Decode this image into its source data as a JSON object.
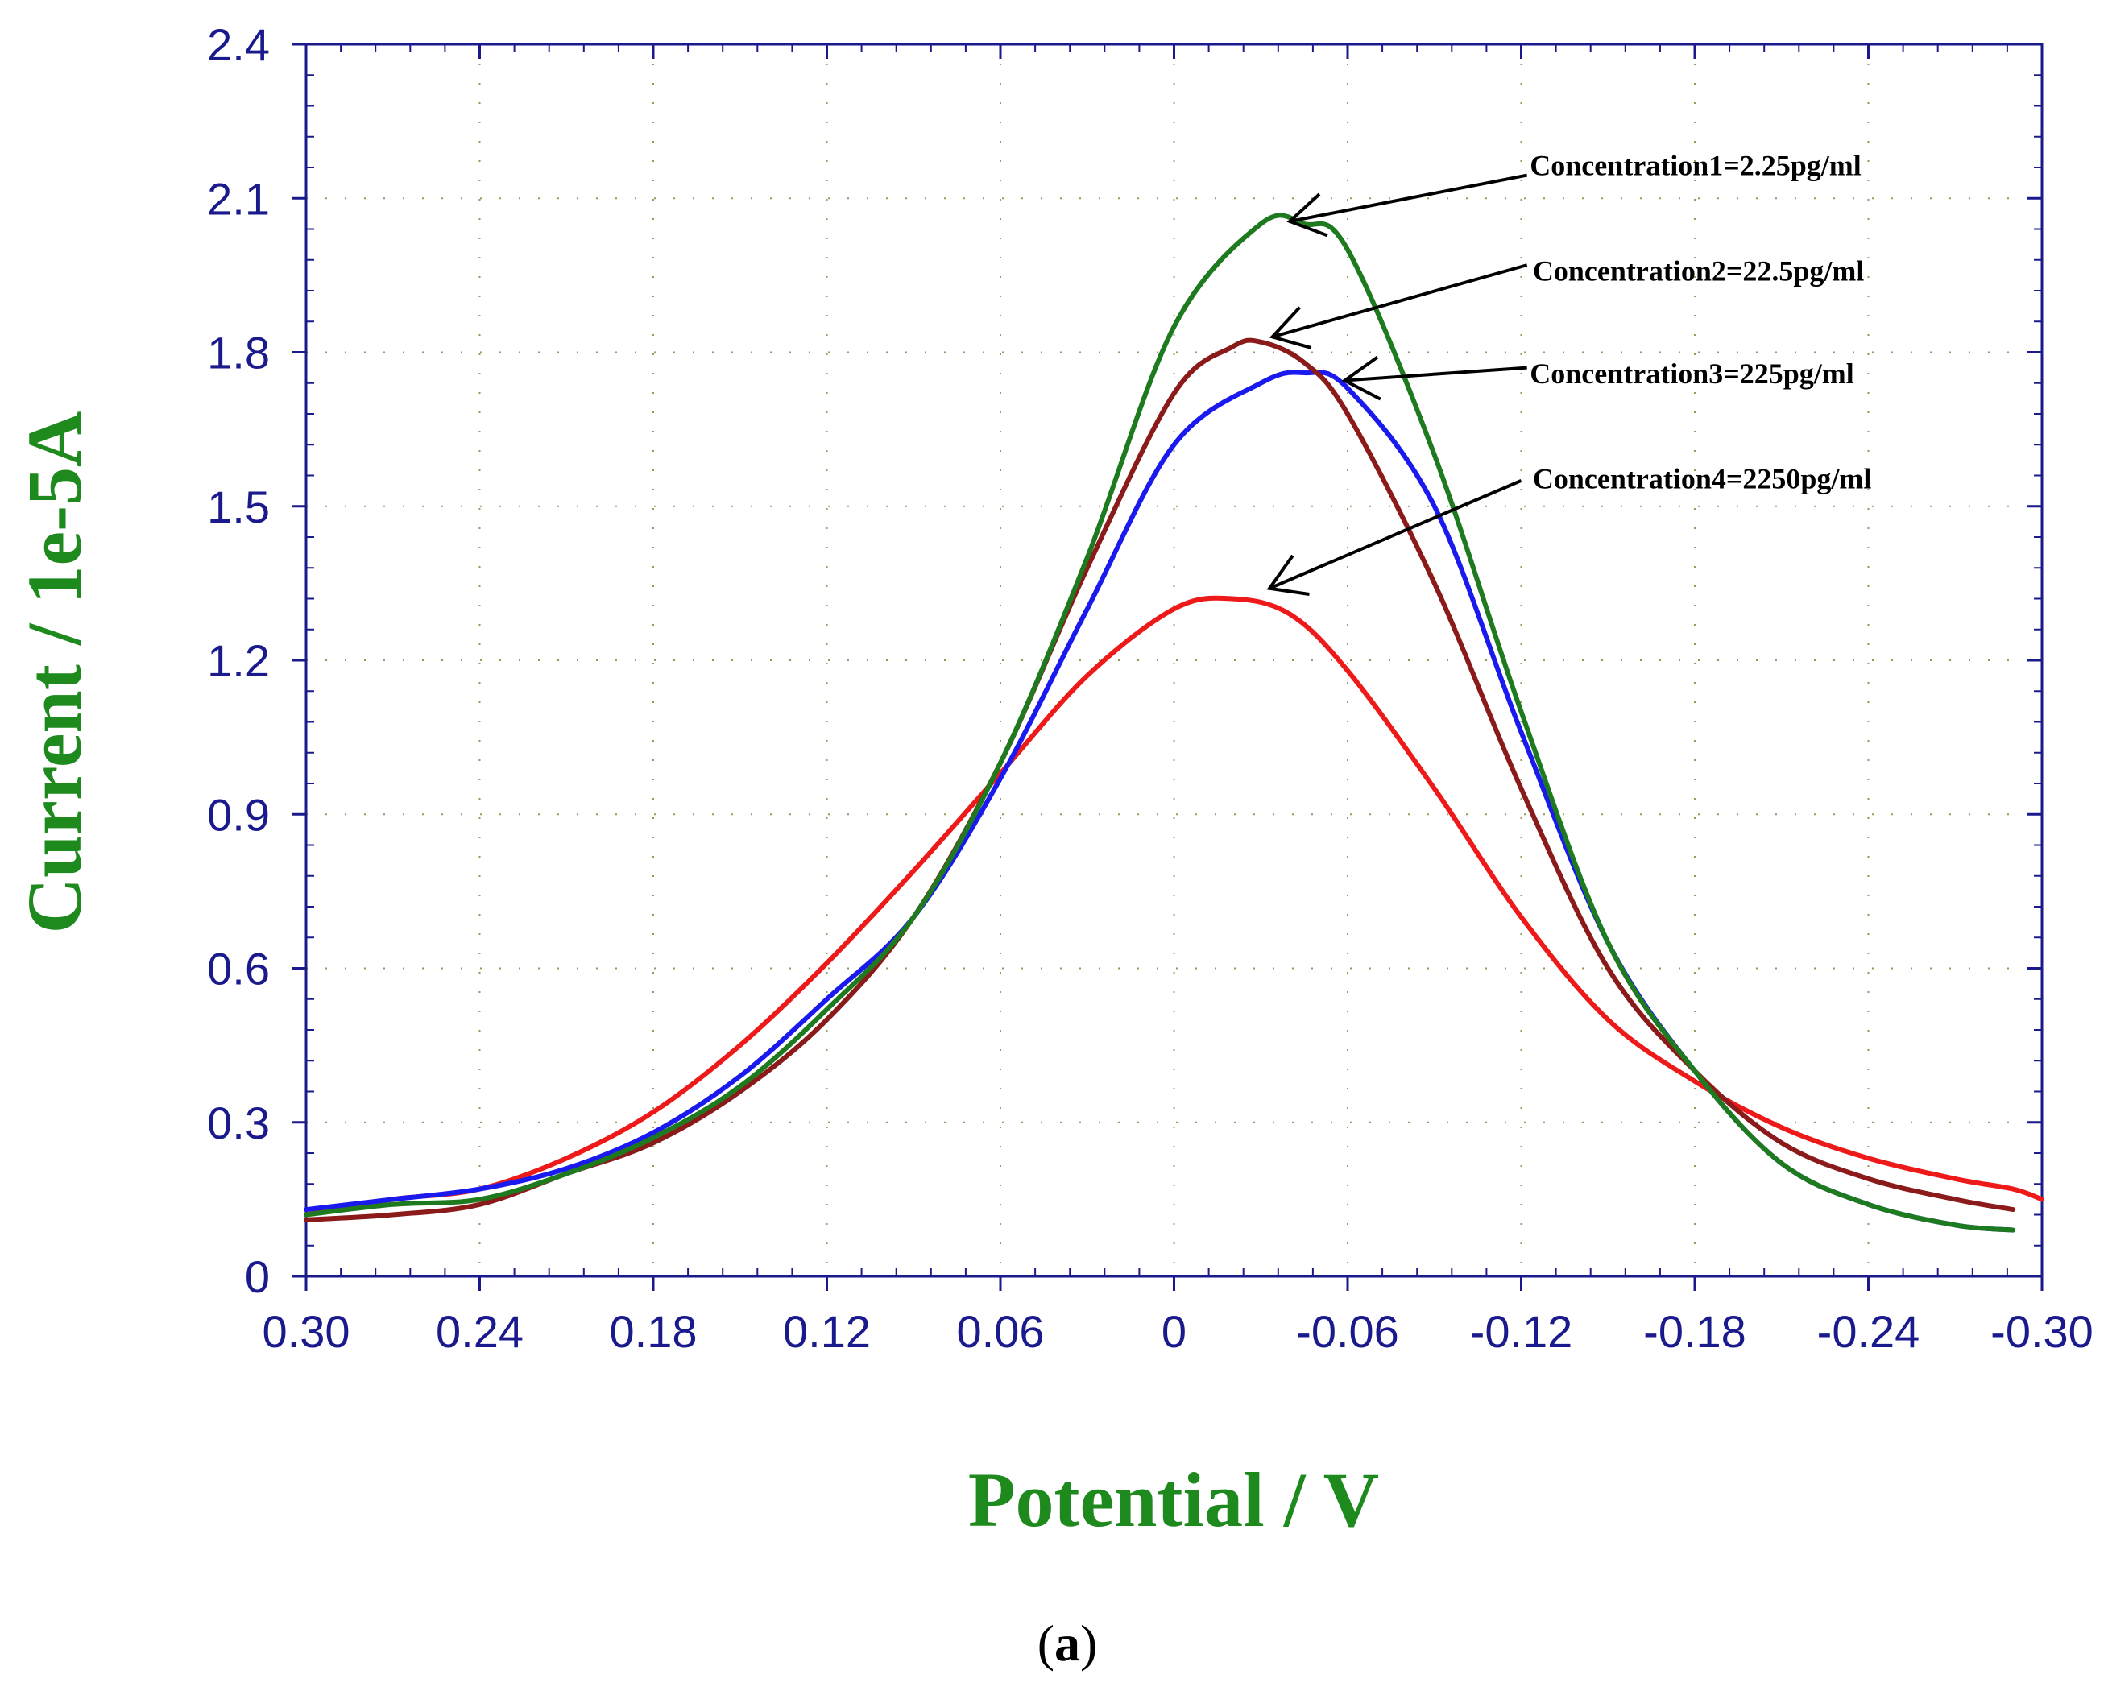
{
  "chart_data": {
    "type": "line",
    "xlabel": "Potential / V",
    "ylabel": "Current / 1e-5A",
    "caption_open": "(",
    "caption_letter": "a",
    "caption_close": ")",
    "xlim": [
      0.3,
      -0.3
    ],
    "ylim": [
      0,
      2.4
    ],
    "grid": true,
    "x_ticks": [
      0.3,
      0.24,
      0.18,
      0.12,
      0.06,
      0,
      -0.06,
      -0.12,
      -0.18,
      -0.24,
      -0.3
    ],
    "x_tick_labels": [
      "0.30",
      "0.24",
      "0.18",
      "0.12",
      "0.06",
      "0",
      "-0.06",
      "-0.12",
      "-0.18",
      "-0.24",
      "-0.30"
    ],
    "y_ticks": [
      0,
      0.3,
      0.6,
      0.9,
      1.2,
      1.5,
      1.8,
      2.1,
      2.4
    ],
    "y_tick_labels": [
      "0",
      "0.3",
      "0.6",
      "0.9",
      "1.2",
      "1.5",
      "1.8",
      "2.1",
      "2.4"
    ],
    "series": [
      {
        "name": "Concentration1=2.25pg/ml",
        "color": "#1e7a1e",
        "x": [
          0.3,
          0.27,
          0.24,
          0.21,
          0.18,
          0.15,
          0.12,
          0.09,
          0.06,
          0.03,
          0.0,
          -0.03,
          -0.045,
          -0.06,
          -0.09,
          -0.12,
          -0.15,
          -0.18,
          -0.21,
          -0.24,
          -0.27,
          -0.29
        ],
        "y": [
          0.12,
          0.14,
          0.15,
          0.2,
          0.27,
          0.37,
          0.52,
          0.7,
          1.0,
          1.4,
          1.85,
          2.05,
          2.05,
          2.0,
          1.6,
          1.1,
          0.65,
          0.4,
          0.22,
          0.14,
          0.1,
          0.09
        ]
      },
      {
        "name": "Concentration2=22.5pg/ml",
        "color": "#8b1a1a",
        "x": [
          0.3,
          0.27,
          0.24,
          0.21,
          0.18,
          0.15,
          0.12,
          0.09,
          0.06,
          0.03,
          0.0,
          -0.02,
          -0.03,
          -0.045,
          -0.06,
          -0.09,
          -0.12,
          -0.15,
          -0.18,
          -0.21,
          -0.24,
          -0.27,
          -0.29
        ],
        "y": [
          0.11,
          0.12,
          0.14,
          0.2,
          0.26,
          0.36,
          0.5,
          0.7,
          1.0,
          1.38,
          1.72,
          1.81,
          1.82,
          1.78,
          1.68,
          1.35,
          0.95,
          0.6,
          0.4,
          0.26,
          0.19,
          0.15,
          0.13
        ]
      },
      {
        "name": "Concentration3=225pg/ml",
        "color": "#1a1aee",
        "x": [
          0.3,
          0.27,
          0.24,
          0.21,
          0.18,
          0.15,
          0.12,
          0.09,
          0.06,
          0.03,
          0.0,
          -0.03,
          -0.045,
          -0.06,
          -0.09,
          -0.12,
          -0.15,
          -0.18,
          -0.21,
          -0.24,
          -0.27,
          -0.29
        ],
        "y": [
          0.13,
          0.15,
          0.17,
          0.21,
          0.28,
          0.39,
          0.54,
          0.7,
          0.97,
          1.3,
          1.62,
          1.74,
          1.76,
          1.73,
          1.5,
          1.06,
          0.65,
          0.4,
          0.22,
          0.14,
          0.1,
          0.09
        ]
      },
      {
        "name": "Concentration4=2250pg/ml",
        "color": "#ee1a1a",
        "x": [
          0.3,
          0.27,
          0.24,
          0.21,
          0.18,
          0.15,
          0.12,
          0.09,
          0.06,
          0.03,
          0.0,
          -0.02,
          -0.04,
          -0.06,
          -0.09,
          -0.12,
          -0.15,
          -0.18,
          -0.21,
          -0.24,
          -0.27,
          -0.29,
          -0.3
        ],
        "y": [
          0.12,
          0.15,
          0.17,
          0.23,
          0.32,
          0.45,
          0.61,
          0.79,
          0.98,
          1.17,
          1.3,
          1.32,
          1.29,
          1.18,
          0.95,
          0.7,
          0.5,
          0.38,
          0.29,
          0.23,
          0.19,
          0.17,
          0.15
        ]
      }
    ],
    "annotations": [
      {
        "text": "Concentration1=2.25pg/ml",
        "label_x": -0.123,
        "label_y": 2.145,
        "arrow_from_x": -0.122,
        "arrow_from_y": 2.145,
        "arrow_to_x": -0.04,
        "arrow_to_y": 2.055
      },
      {
        "text": "Concentration2=22.5pg/ml",
        "label_x": -0.124,
        "label_y": 1.94,
        "arrow_from_x": -0.122,
        "arrow_from_y": 1.97,
        "arrow_to_x": -0.034,
        "arrow_to_y": 1.83
      },
      {
        "text": "Concentration3=225pg/ml",
        "label_x": -0.123,
        "label_y": 1.74,
        "arrow_from_x": -0.122,
        "arrow_from_y": 1.77,
        "arrow_to_x": -0.059,
        "arrow_to_y": 1.745
      },
      {
        "text": "Concentration4=2250pg/ml",
        "label_x": -0.124,
        "label_y": 1.535,
        "arrow_from_x": -0.12,
        "arrow_from_y": 1.55,
        "arrow_to_x": -0.033,
        "arrow_to_y": 1.34
      }
    ]
  }
}
